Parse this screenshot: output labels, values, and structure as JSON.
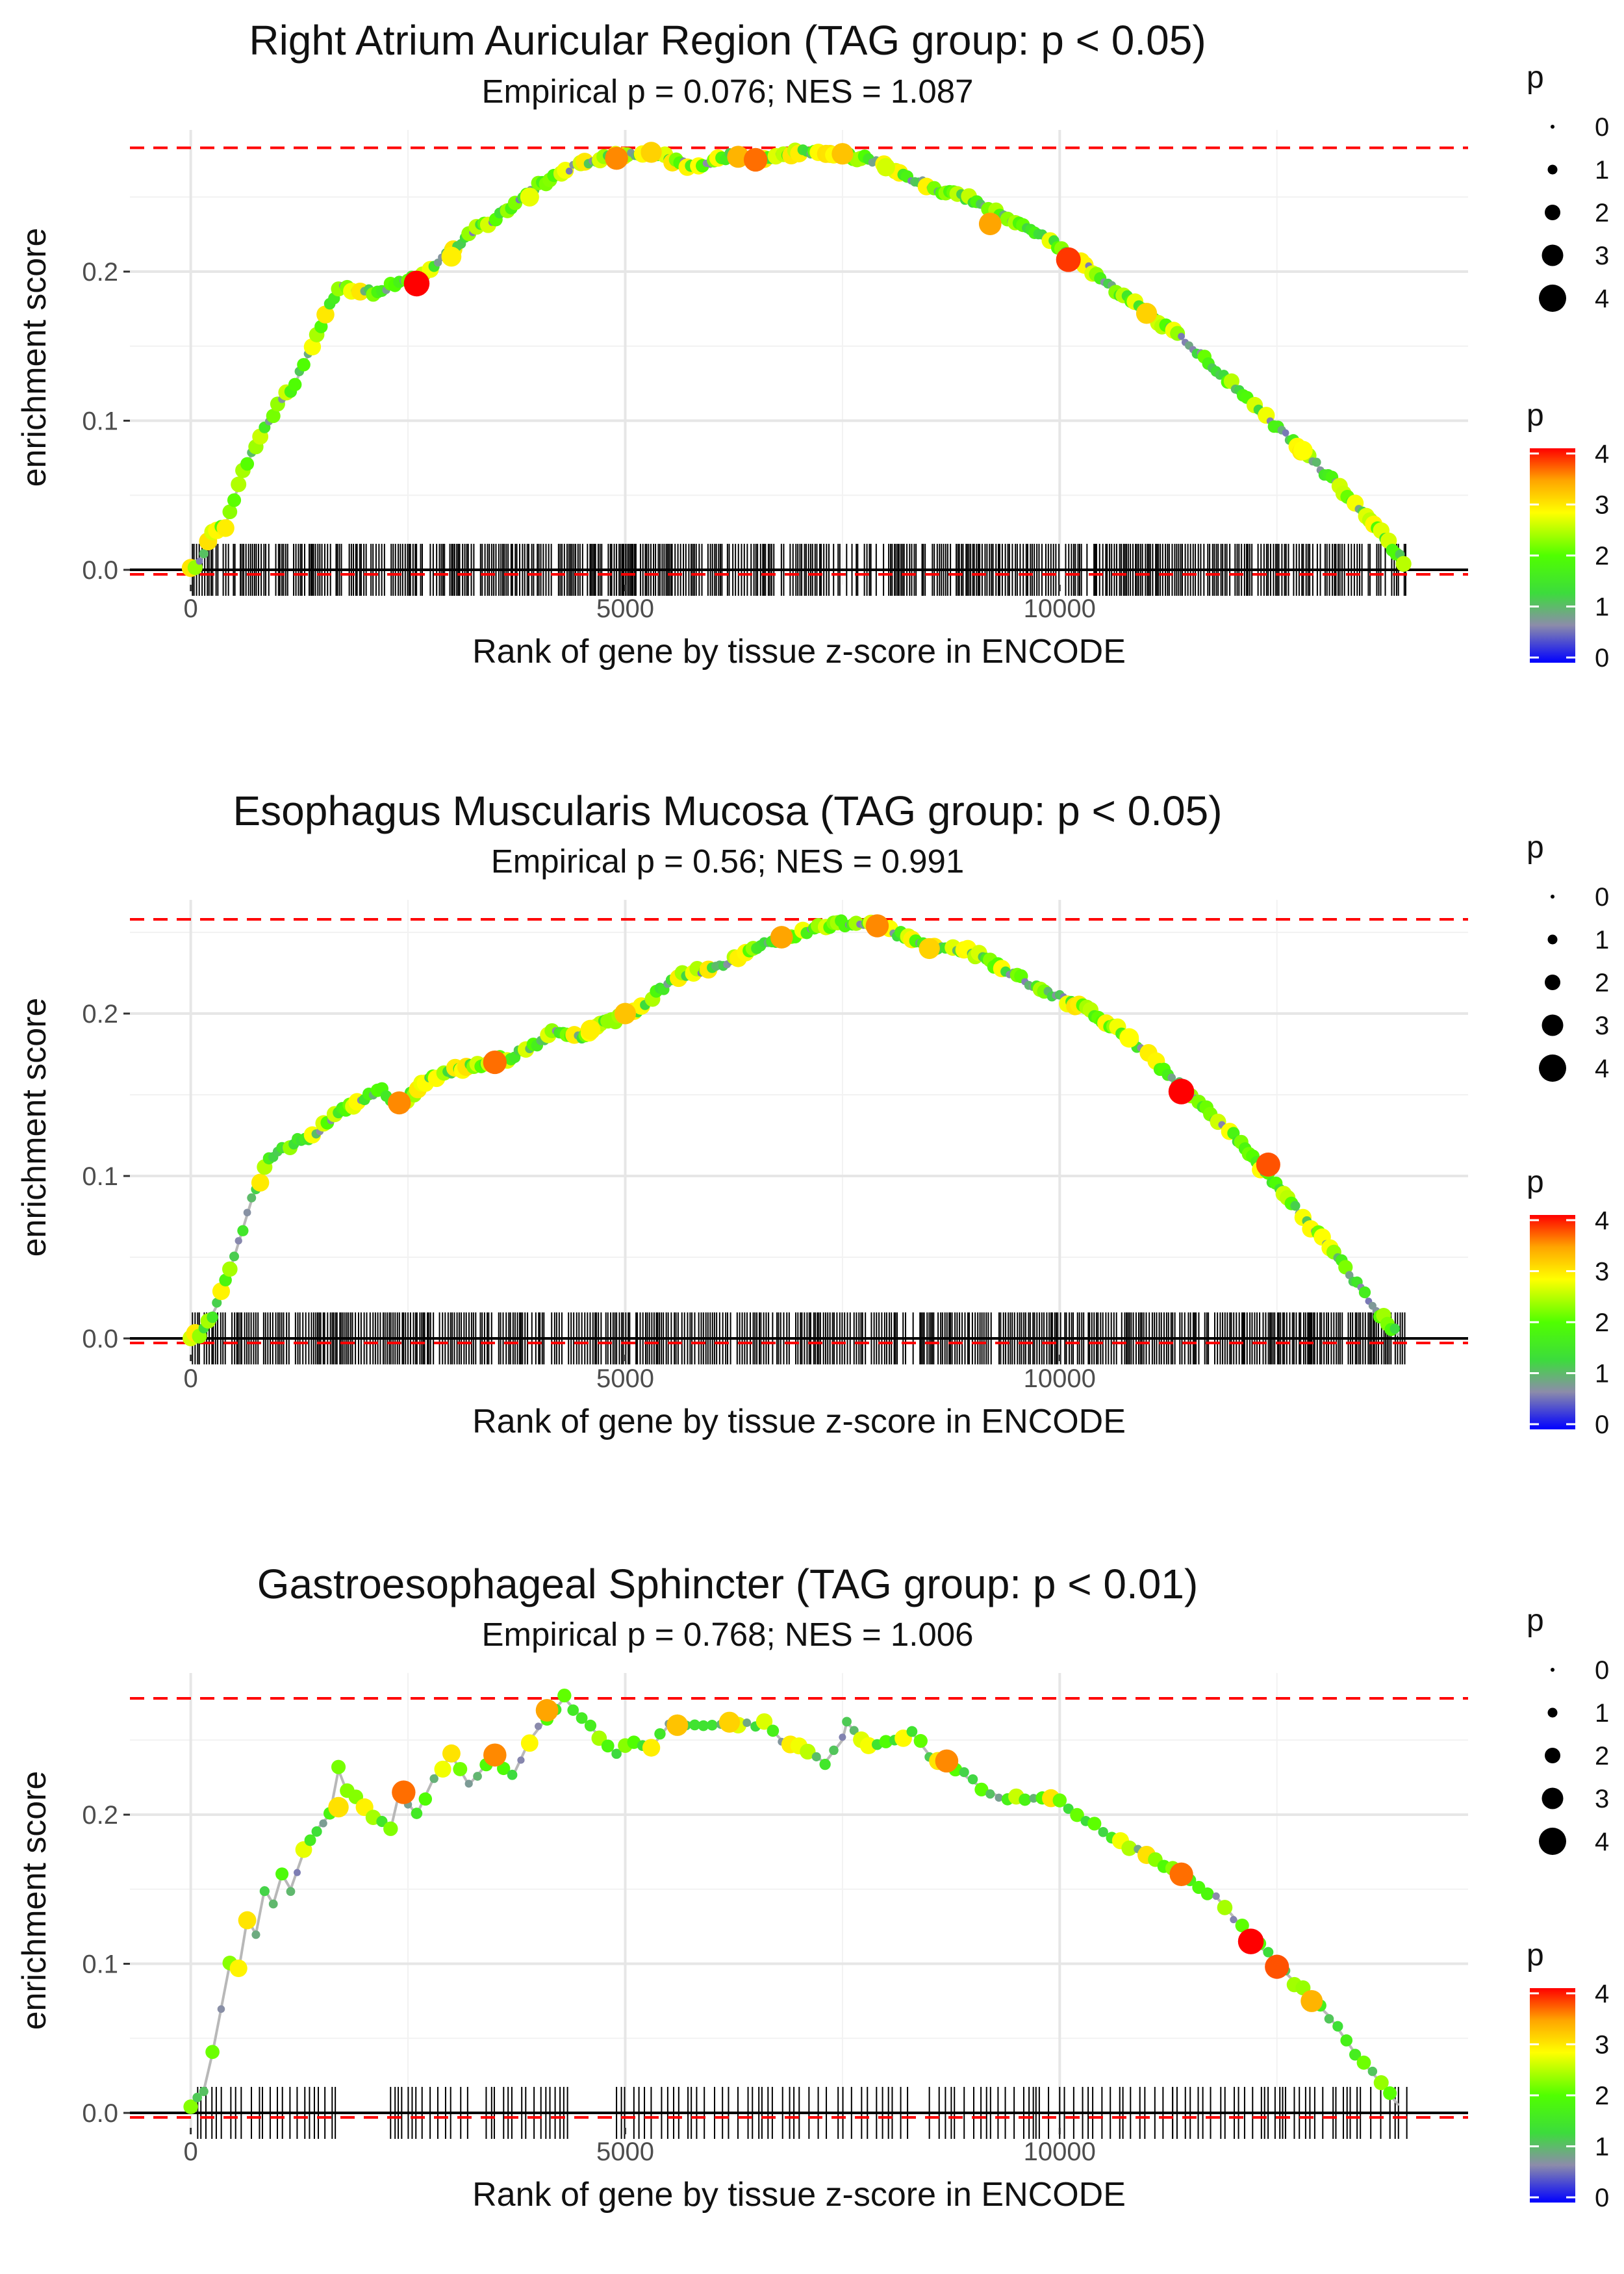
{
  "chart_data": [
    {
      "type": "scatter",
      "title": "Right Atrium Auricular Region (TAG group: p < 0.05)",
      "subtitle": "Empirical p = 0.076; NES = 1.087",
      "xlabel": "Rank of gene by tissue z-score in ENCODE",
      "ylabel": "enrichment score",
      "xlim": [
        -700,
        14700
      ],
      "ylim": [
        -0.01,
        0.295
      ],
      "x_ticks": [
        0,
        5000,
        10000
      ],
      "x_tick_labels": [
        "0",
        "5000",
        "10000"
      ],
      "y_ticks": [
        0.0,
        0.1,
        0.2
      ],
      "y_tick_labels": [
        "0.0",
        "0.1",
        "0.2"
      ],
      "max_es": 0.283,
      "rug_density": "dense",
      "curve": [
        [
          0,
          0
        ],
        [
          100,
          0.005
        ],
        [
          250,
          0.025
        ],
        [
          400,
          0.03
        ],
        [
          600,
          0.065
        ],
        [
          800,
          0.09
        ],
        [
          1000,
          0.11
        ],
        [
          1200,
          0.125
        ],
        [
          1400,
          0.15
        ],
        [
          1550,
          0.17
        ],
        [
          1700,
          0.19
        ],
        [
          1900,
          0.188
        ],
        [
          2100,
          0.186
        ],
        [
          2300,
          0.19
        ],
        [
          2500,
          0.193
        ],
        [
          2800,
          0.205
        ],
        [
          3200,
          0.225
        ],
        [
          3600,
          0.24
        ],
        [
          4000,
          0.258
        ],
        [
          4400,
          0.27
        ],
        [
          4800,
          0.278
        ],
        [
          5200,
          0.28
        ],
        [
          5500,
          0.276
        ],
        [
          5800,
          0.27
        ],
        [
          6200,
          0.278
        ],
        [
          6600,
          0.275
        ],
        [
          7000,
          0.281
        ],
        [
          7400,
          0.279
        ],
        [
          7800,
          0.275
        ],
        [
          8200,
          0.265
        ],
        [
          8600,
          0.255
        ],
        [
          9000,
          0.248
        ],
        [
          9400,
          0.235
        ],
        [
          9800,
          0.225
        ],
        [
          10200,
          0.208
        ],
        [
          10600,
          0.19
        ],
        [
          11000,
          0.172
        ],
        [
          11400,
          0.155
        ],
        [
          11800,
          0.135
        ],
        [
          12200,
          0.112
        ],
        [
          12600,
          0.09
        ],
        [
          13000,
          0.068
        ],
        [
          13400,
          0.045
        ],
        [
          13700,
          0.025
        ],
        [
          14000,
          0.002
        ]
      ],
      "highlights": [
        [
          2600,
          0.192,
          4.0
        ],
        [
          4900,
          0.276,
          3.5
        ],
        [
          5300,
          0.28,
          3.1
        ],
        [
          6300,
          0.277,
          3.3
        ],
        [
          6500,
          0.275,
          3.6
        ],
        [
          7500,
          0.279,
          3.2
        ],
        [
          9200,
          0.232,
          3.4
        ],
        [
          10100,
          0.208,
          3.8
        ],
        [
          11000,
          0.172,
          3.1
        ],
        [
          12800,
          0.08,
          2.8
        ],
        [
          3000,
          0.21,
          2.9
        ],
        [
          3900,
          0.25,
          2.7
        ],
        [
          8000,
          0.27,
          2.6
        ]
      ],
      "size_legend": {
        "title": "p",
        "labels": [
          "0",
          "1",
          "2",
          "3",
          "4"
        ]
      },
      "color_legend": {
        "title": "p",
        "labels": [
          "4",
          "3",
          "2",
          "1",
          "0"
        ]
      }
    },
    {
      "type": "scatter",
      "title": "Esophagus Muscularis Mucosa (TAG group: p < 0.05)",
      "subtitle": "Empirical p = 0.56; NES = 0.991",
      "xlabel": "Rank of gene by tissue z-score in ENCODE",
      "ylabel": "enrichment score",
      "xlim": [
        -700,
        14700
      ],
      "ylim": [
        -0.01,
        0.27
      ],
      "x_ticks": [
        0,
        5000,
        10000
      ],
      "x_tick_labels": [
        "0",
        "5000",
        "10000"
      ],
      "y_ticks": [
        0.0,
        0.1,
        0.2
      ],
      "y_tick_labels": [
        "0.0",
        "0.1",
        "0.2"
      ],
      "max_es": 0.258,
      "rug_density": "dense",
      "curve": [
        [
          0,
          0
        ],
        [
          150,
          0.005
        ],
        [
          300,
          0.02
        ],
        [
          500,
          0.05
        ],
        [
          700,
          0.085
        ],
        [
          900,
          0.11
        ],
        [
          1100,
          0.118
        ],
        [
          1400,
          0.125
        ],
        [
          1700,
          0.14
        ],
        [
          2000,
          0.148
        ],
        [
          2200,
          0.152
        ],
        [
          2400,
          0.143
        ],
        [
          2700,
          0.158
        ],
        [
          3000,
          0.165
        ],
        [
          3300,
          0.168
        ],
        [
          3600,
          0.172
        ],
        [
          3900,
          0.178
        ],
        [
          4200,
          0.19
        ],
        [
          4500,
          0.185
        ],
        [
          4800,
          0.195
        ],
        [
          5100,
          0.2
        ],
        [
          5400,
          0.215
        ],
        [
          5700,
          0.225
        ],
        [
          6000,
          0.228
        ],
        [
          6300,
          0.235
        ],
        [
          6600,
          0.242
        ],
        [
          7000,
          0.25
        ],
        [
          7400,
          0.255
        ],
        [
          7700,
          0.257
        ],
        [
          8000,
          0.252
        ],
        [
          8300,
          0.246
        ],
        [
          8600,
          0.24
        ],
        [
          8900,
          0.24
        ],
        [
          9200,
          0.232
        ],
        [
          9600,
          0.22
        ],
        [
          10000,
          0.21
        ],
        [
          10400,
          0.2
        ],
        [
          10800,
          0.185
        ],
        [
          11200,
          0.165
        ],
        [
          11600,
          0.145
        ],
        [
          12000,
          0.125
        ],
        [
          12400,
          0.1
        ],
        [
          12800,
          0.075
        ],
        [
          13200,
          0.05
        ],
        [
          13600,
          0.02
        ],
        [
          13900,
          0.002
        ]
      ],
      "highlights": [
        [
          2400,
          0.145,
          3.5
        ],
        [
          3500,
          0.17,
          3.6
        ],
        [
          5000,
          0.2,
          3.2
        ],
        [
          6800,
          0.247,
          3.4
        ],
        [
          7900,
          0.254,
          3.5
        ],
        [
          8500,
          0.24,
          3.1
        ],
        [
          11400,
          0.152,
          4.0
        ],
        [
          12400,
          0.107,
          3.7
        ],
        [
          4600,
          0.19,
          2.9
        ],
        [
          10800,
          0.185,
          2.8
        ]
      ],
      "size_legend": {
        "title": "p",
        "labels": [
          "0",
          "1",
          "2",
          "3",
          "4"
        ]
      },
      "color_legend": {
        "title": "p",
        "labels": [
          "4",
          "3",
          "2",
          "1",
          "0"
        ]
      }
    },
    {
      "type": "scatter",
      "title": "Gastroesophageal Sphincter (TAG group: p < 0.01)",
      "subtitle": "Empirical p = 0.768; NES = 1.006",
      "xlabel": "Rank of gene by tissue z-score in ENCODE",
      "ylabel": "enrichment score",
      "xlim": [
        -700,
        14700
      ],
      "ylim": [
        -0.01,
        0.295
      ],
      "x_ticks": [
        0,
        5000,
        10000
      ],
      "x_tick_labels": [
        "0",
        "5000",
        "10000"
      ],
      "y_ticks": [
        0.0,
        0.1,
        0.2
      ],
      "y_tick_labels": [
        "0.0",
        "0.1",
        "0.2"
      ],
      "max_es": 0.278,
      "rug_density": "sparse",
      "curve": [
        [
          0,
          0.005
        ],
        [
          150,
          0.015
        ],
        [
          250,
          0.04
        ],
        [
          350,
          0.07
        ],
        [
          450,
          0.1
        ],
        [
          550,
          0.095
        ],
        [
          650,
          0.13
        ],
        [
          750,
          0.12
        ],
        [
          850,
          0.15
        ],
        [
          950,
          0.14
        ],
        [
          1050,
          0.16
        ],
        [
          1150,
          0.15
        ],
        [
          1300,
          0.175
        ],
        [
          1450,
          0.19
        ],
        [
          1600,
          0.2
        ],
        [
          1700,
          0.23
        ],
        [
          1800,
          0.215
        ],
        [
          2300,
          0.19
        ],
        [
          2400,
          0.215
        ],
        [
          2600,
          0.2
        ],
        [
          2800,
          0.225
        ],
        [
          3000,
          0.24
        ],
        [
          3200,
          0.22
        ],
        [
          3500,
          0.24
        ],
        [
          3700,
          0.225
        ],
        [
          3900,
          0.25
        ],
        [
          4100,
          0.265
        ],
        [
          4300,
          0.278
        ],
        [
          4900,
          0.24
        ],
        [
          5100,
          0.25
        ],
        [
          5300,
          0.245
        ],
        [
          5500,
          0.26
        ],
        [
          5800,
          0.262
        ],
        [
          6200,
          0.258
        ],
        [
          6600,
          0.262
        ],
        [
          6800,
          0.25
        ],
        [
          7100,
          0.242
        ],
        [
          7300,
          0.235
        ],
        [
          7500,
          0.25
        ],
        [
          7550,
          0.262
        ],
        [
          7800,
          0.245
        ],
        [
          8100,
          0.248
        ],
        [
          8300,
          0.255
        ],
        [
          8500,
          0.24
        ],
        [
          8700,
          0.236
        ],
        [
          9000,
          0.222
        ],
        [
          9300,
          0.212
        ],
        [
          9600,
          0.21
        ],
        [
          9900,
          0.212
        ],
        [
          10200,
          0.2
        ],
        [
          10600,
          0.185
        ],
        [
          11000,
          0.172
        ],
        [
          11400,
          0.16
        ],
        [
          11800,
          0.145
        ],
        [
          12200,
          0.118
        ],
        [
          12500,
          0.1
        ],
        [
          12800,
          0.082
        ],
        [
          13100,
          0.065
        ],
        [
          13400,
          0.04
        ],
        [
          13700,
          0.02
        ],
        [
          13900,
          0.005
        ]
      ],
      "highlights": [
        [
          2450,
          0.215,
          3.6
        ],
        [
          3500,
          0.24,
          3.5
        ],
        [
          4100,
          0.27,
          3.4
        ],
        [
          5600,
          0.26,
          3.2
        ],
        [
          6200,
          0.262,
          3.1
        ],
        [
          8700,
          0.236,
          3.5
        ],
        [
          11400,
          0.16,
          3.6
        ],
        [
          12200,
          0.115,
          4.0
        ],
        [
          12500,
          0.098,
          3.7
        ],
        [
          12900,
          0.075,
          3.3
        ],
        [
          1700,
          0.205,
          3.0
        ]
      ],
      "size_legend": {
        "title": "p",
        "labels": [
          "0",
          "1",
          "2",
          "3",
          "4"
        ]
      },
      "color_legend": {
        "title": "p",
        "labels": [
          "4",
          "3",
          "2",
          "1",
          "0"
        ]
      }
    }
  ]
}
